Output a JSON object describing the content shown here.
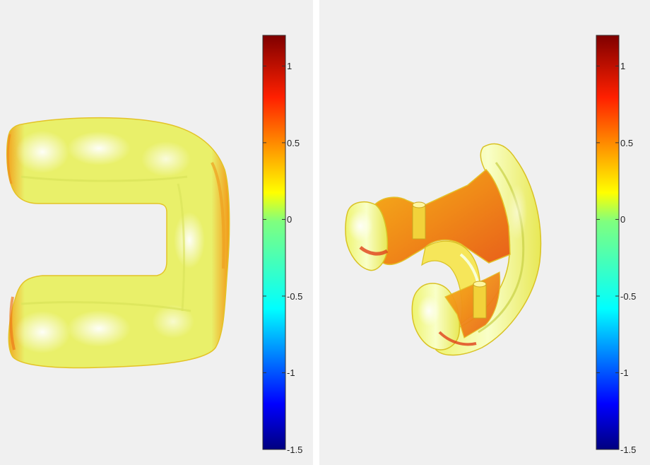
{
  "panels": [
    {
      "id": "left",
      "colorbar": {
        "min": -1.5,
        "max": 1.2,
        "ticks": [
          {
            "value": 1,
            "label": "1"
          },
          {
            "value": 0.5,
            "label": "0.5"
          },
          {
            "value": 0,
            "label": "0"
          },
          {
            "value": -0.5,
            "label": "-0.5"
          },
          {
            "value": -1,
            "label": "-1"
          },
          {
            "value": -1.5,
            "label": "-1.5"
          }
        ],
        "colormap": "jet"
      }
    },
    {
      "id": "right",
      "colorbar": {
        "min": -1.5,
        "max": 1.2,
        "ticks": [
          {
            "value": 1,
            "label": "1"
          },
          {
            "value": 0.5,
            "label": "0.5"
          },
          {
            "value": 0,
            "label": "0"
          },
          {
            "value": -0.5,
            "label": "-0.5"
          },
          {
            "value": -1,
            "label": "-1"
          },
          {
            "value": -1.5,
            "label": "-1.5"
          }
        ],
        "colormap": "jet"
      }
    }
  ],
  "colors": {
    "background": "#f0f0f0",
    "surface_main": "#e4f06a",
    "surface_highlight": "#f8ffd8",
    "surface_warm": "#f7c21a",
    "surface_hot": "#e8561a"
  }
}
